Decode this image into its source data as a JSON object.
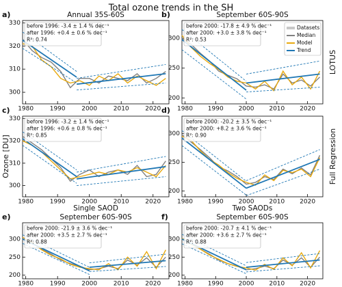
{
  "chart_data": {
    "type": "line",
    "title": "Total ozone trends in the SH",
    "ylabel": "Ozone [DU]",
    "row_labels": [
      "LOTUS",
      "Full Regression"
    ],
    "colors": {
      "datasets": "#c8c8c8",
      "median": "#808080",
      "model": "#e8a90e",
      "trend": "#1f77b4"
    },
    "panels": [
      {
        "label": "a)",
        "title": [
          "Annual 35S-60S"
        ],
        "stats": [
          "before 1996: -3.4 ± 1.4 % dec⁻¹",
          "after 1996: +0.4 ± 0.6 % dec⁻¹",
          "R²: 0.74"
        ],
        "xlim": [
          1979,
          2025
        ],
        "xticks": [
          1980,
          1990,
          2000,
          2010,
          2020
        ],
        "ylim": [
          295,
          331
        ],
        "yticks": [
          300,
          310,
          320,
          330
        ],
        "x": [
          1979,
          1982,
          1985,
          1988,
          1991,
          1994,
          1997,
          2000,
          2003,
          2006,
          2009,
          2012,
          2015,
          2018,
          2021,
          2024
        ],
        "median": [
          323,
          318,
          315,
          313,
          309,
          302,
          306,
          306,
          304,
          307,
          306,
          305,
          308,
          304,
          306,
          309
        ],
        "model": [
          321,
          320,
          314,
          311,
          306,
          304,
          305,
          303,
          307,
          305,
          308,
          304,
          307,
          305,
          303,
          306
        ],
        "trends": [
          {
            "x": [
              1979,
              1996
            ],
            "values": [
              322.5,
              306.5
            ],
            "upper": [
              326,
              309
            ],
            "lower": [
              319,
              304
            ]
          },
          {
            "x": [
              1996,
              2024
            ],
            "values": [
              303.5,
              308
            ],
            "upper": [
              306,
              312
            ],
            "lower": [
              301,
              304
            ]
          }
        ]
      },
      {
        "label": "b)",
        "title": [
          "September 60S-90S"
        ],
        "stats": [
          "before 2000: -17.8 ± 4.9 % dec⁻¹",
          "after 2000: +3.0 ± 3.8 % dec⁻¹",
          "R²: 0.53"
        ],
        "xlim": [
          1979,
          2025
        ],
        "xticks": [
          1980,
          1990,
          2000,
          2010,
          2020
        ],
        "ylim": [
          190,
          330
        ],
        "yticks": [
          200,
          250,
          300
        ],
        "x": [
          1979,
          1982,
          1985,
          1988,
          1991,
          1994,
          1997,
          2000,
          2003,
          2006,
          2009,
          2012,
          2015,
          2018,
          2021,
          2024
        ],
        "median": [
          300,
          290,
          275,
          262,
          245,
          238,
          232,
          220,
          218,
          222,
          215,
          240,
          225,
          230,
          220,
          235
        ],
        "model": [
          305,
          285,
          270,
          258,
          248,
          235,
          228,
          225,
          215,
          228,
          212,
          245,
          222,
          235,
          215,
          245
        ],
        "trends": [
          {
            "x": [
              1979,
              2000
            ],
            "values": [
              298,
              213
            ],
            "upper": [
              315,
              228
            ],
            "lower": [
              281,
              198
            ]
          },
          {
            "x": [
              2000,
              2024
            ],
            "values": [
              225,
              240
            ],
            "upper": [
              240,
              262
            ],
            "lower": [
              210,
              218
            ]
          }
        ],
        "legend": [
          "Datasets",
          "Median",
          "Model",
          "Trend"
        ]
      },
      {
        "label": "c)",
        "title": [],
        "stats": [
          "before 1996: -3.2 ± 1.4 % dec⁻¹",
          "after 1996: +0.6 ± 0.8 % dec⁻¹",
          "R²: 0.85"
        ],
        "xlim": [
          1979,
          2025
        ],
        "xticks": [
          1980,
          1990,
          2000,
          2010,
          2020
        ],
        "ylim": [
          295,
          331
        ],
        "yticks": [
          300,
          310,
          320,
          330
        ],
        "x": [
          1979,
          1982,
          1985,
          1988,
          1991,
          1994,
          1997,
          2000,
          2003,
          2006,
          2009,
          2012,
          2015,
          2018,
          2021,
          2024
        ],
        "median": [
          322,
          319,
          316,
          312,
          308,
          302,
          305,
          307,
          304,
          306,
          307,
          305,
          309,
          304,
          305,
          311
        ],
        "model": [
          320,
          318,
          315,
          311,
          307,
          303,
          304,
          305,
          306,
          305,
          307,
          306,
          308,
          306,
          304,
          309
        ],
        "trends": [
          {
            "x": [
              1979,
              1996
            ],
            "values": [
              321,
              304
            ],
            "upper": [
              324,
              307
            ],
            "lower": [
              318,
              301
            ]
          },
          {
            "x": [
              1996,
              2024
            ],
            "values": [
              303,
              308.5
            ],
            "upper": [
              306,
              313
            ],
            "lower": [
              300,
              304
            ]
          }
        ]
      },
      {
        "label": "d)",
        "title": [],
        "stats": [
          "before 2000: -20.2 ± 3.5 % dec⁻¹",
          "after 2000: +8.2 ± 3.6 % dec⁻¹",
          "R²: 0.90"
        ],
        "xlim": [
          1979,
          2025
        ],
        "xticks": [
          1980,
          1990,
          2000,
          2010,
          2020
        ],
        "ylim": [
          190,
          330
        ],
        "yticks": [
          200,
          250,
          300
        ],
        "x": [
          1979,
          1982,
          1985,
          1988,
          1991,
          1994,
          1997,
          2000,
          2003,
          2006,
          2009,
          2012,
          2015,
          2018,
          2021,
          2024
        ],
        "median": [
          298,
          285,
          272,
          258,
          242,
          235,
          225,
          212,
          215,
          225,
          220,
          238,
          230,
          240,
          228,
          262
        ],
        "model": [
          295,
          288,
          270,
          255,
          245,
          232,
          222,
          215,
          210,
          228,
          218,
          236,
          232,
          238,
          225,
          258
        ],
        "trends": [
          {
            "x": [
              1979,
              2000
            ],
            "values": [
              292,
              205
            ],
            "upper": [
              305,
              217
            ],
            "lower": [
              279,
              193
            ]
          },
          {
            "x": [
              2000,
              2024
            ],
            "values": [
              205,
              255
            ],
            "upper": [
              218,
              272
            ],
            "lower": [
              192,
              238
            ]
          }
        ]
      },
      {
        "label": "e)",
        "title": [
          "Single SAOD",
          "September 60S-90S"
        ],
        "stats": [
          "before 2000: -21.9 ± 3.6 % dec⁻¹",
          "after 2000: +3.5 ± 2.7 % dec⁻¹",
          "R²: 0.88"
        ],
        "xlim": [
          1979,
          2025
        ],
        "xticks": [
          1980,
          1990,
          2000,
          2010,
          2020
        ],
        "ylim": [
          190,
          345
        ],
        "yticks": [
          200,
          250,
          300
        ],
        "x": [
          1979,
          1982,
          1985,
          1988,
          1991,
          1994,
          1997,
          2000,
          2003,
          2006,
          2009,
          2012,
          2015,
          2018,
          2021,
          2024
        ],
        "median": [
          300,
          288,
          272,
          258,
          242,
          232,
          225,
          215,
          218,
          225,
          218,
          242,
          228,
          248,
          222,
          250
        ],
        "model": [
          305,
          290,
          270,
          255,
          245,
          230,
          222,
          218,
          215,
          232,
          215,
          250,
          225,
          265,
          218,
          270
        ],
        "trends": [
          {
            "x": [
              1979,
              2000
            ],
            "values": [
              300,
              212
            ],
            "upper": [
              312,
              222
            ],
            "lower": [
              288,
              202
            ]
          },
          {
            "x": [
              2000,
              2024
            ],
            "values": [
              222,
              240
            ],
            "upper": [
              234,
              258
            ],
            "lower": [
              210,
              224
            ]
          }
        ]
      },
      {
        "label": "f)",
        "title": [
          "Two SAODs",
          "September 60S-90S"
        ],
        "stats": [
          "before 2000: -20.7 ± 4.1 % dec⁻¹",
          "after 2000: +3.6 ± 2.7 % dec⁻¹",
          "R²: 0.88"
        ],
        "xlim": [
          1979,
          2025
        ],
        "xticks": [
          1980,
          1990,
          2000,
          2010,
          2020
        ],
        "ylim": [
          190,
          345
        ],
        "yticks": [
          200,
          250,
          300
        ],
        "x": [
          1979,
          1982,
          1985,
          1988,
          1991,
          1994,
          1997,
          2000,
          2003,
          2006,
          2009,
          2012,
          2015,
          2018,
          2021,
          2024
        ],
        "median": [
          300,
          288,
          272,
          258,
          242,
          232,
          225,
          215,
          218,
          225,
          218,
          242,
          228,
          248,
          222,
          250
        ],
        "model": [
          302,
          286,
          272,
          256,
          244,
          232,
          224,
          220,
          214,
          230,
          216,
          248,
          226,
          262,
          220,
          268
        ],
        "trends": [
          {
            "x": [
              1979,
              2000
            ],
            "values": [
              300,
              215
            ],
            "upper": [
              313,
              226
            ],
            "lower": [
              287,
              204
            ]
          },
          {
            "x": [
              2000,
              2024
            ],
            "values": [
              222,
              242
            ],
            "upper": [
              235,
              260
            ],
            "lower": [
              209,
              226
            ]
          }
        ]
      }
    ]
  }
}
